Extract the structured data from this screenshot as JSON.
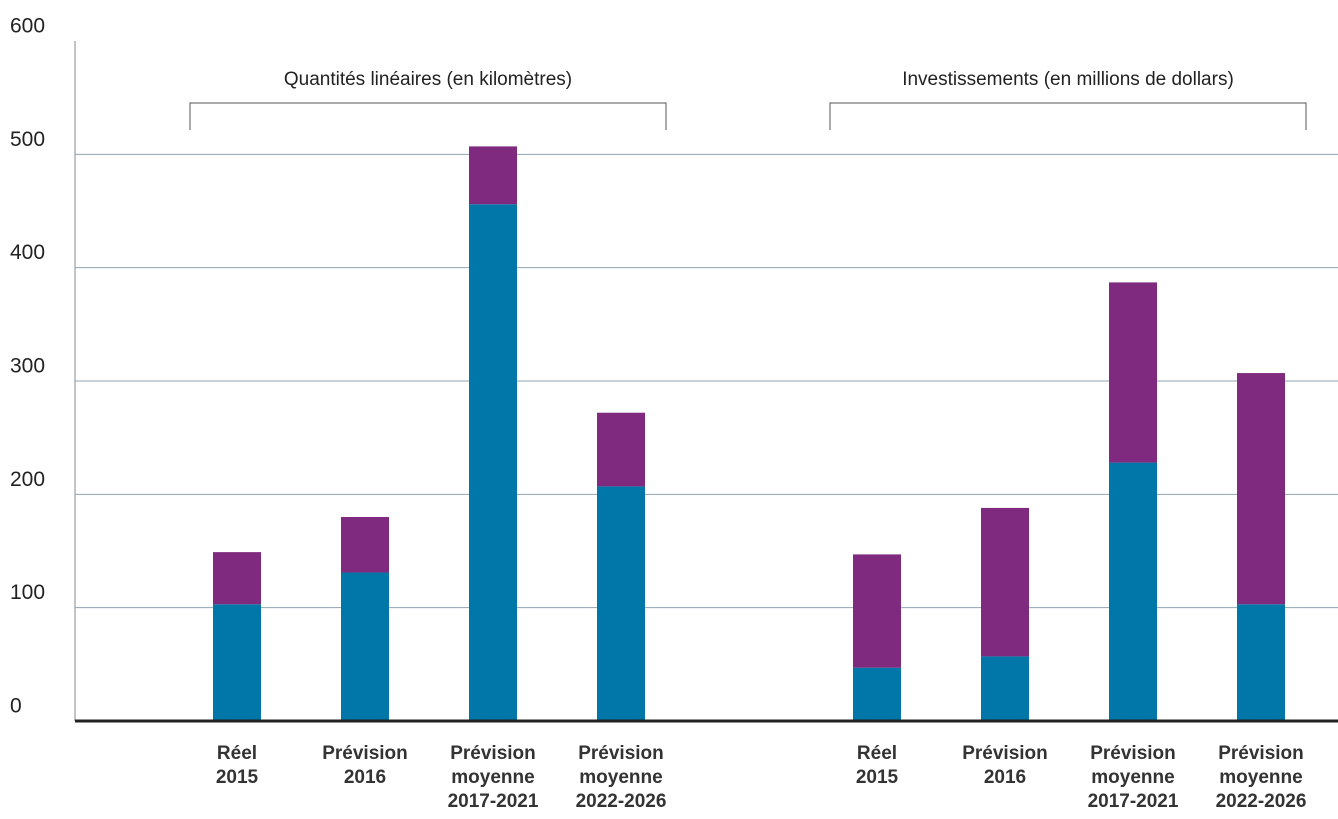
{
  "chart_data": {
    "type": "bar",
    "stacked": true,
    "grid": true,
    "ylim": [
      0,
      600
    ],
    "yticks": [
      0,
      100,
      200,
      300,
      400,
      500,
      600
    ],
    "groups": [
      {
        "title": "Quantités linéaires (en kilomètres)",
        "categories": [
          [
            "Réel",
            "2015"
          ],
          [
            "Prévision",
            "2016"
          ],
          [
            "Prévision",
            "moyenne",
            "2017-2021"
          ],
          [
            "Prévision",
            "moyenne",
            "2022-2026"
          ]
        ],
        "series": [
          {
            "color": "#0077a8",
            "values": [
              103,
              131,
              456,
              207
            ]
          },
          {
            "color": "#7f2a7e",
            "values": [
              46,
              49,
              51,
              65
            ]
          }
        ]
      },
      {
        "title": "Investissements (en millions de dollars)",
        "categories": [
          [
            "Réel",
            "2015"
          ],
          [
            "Prévision",
            "2016"
          ],
          [
            "Prévision",
            "moyenne",
            "2017-2021"
          ],
          [
            "Prévision",
            "moyenne",
            "2022-2026"
          ]
        ],
        "series": [
          {
            "color": "#0077a8",
            "values": [
              47,
              57,
              228,
              103
            ]
          },
          {
            "color": "#7f2a7e",
            "values": [
              100,
              131,
              159,
              204
            ]
          }
        ]
      }
    ]
  }
}
